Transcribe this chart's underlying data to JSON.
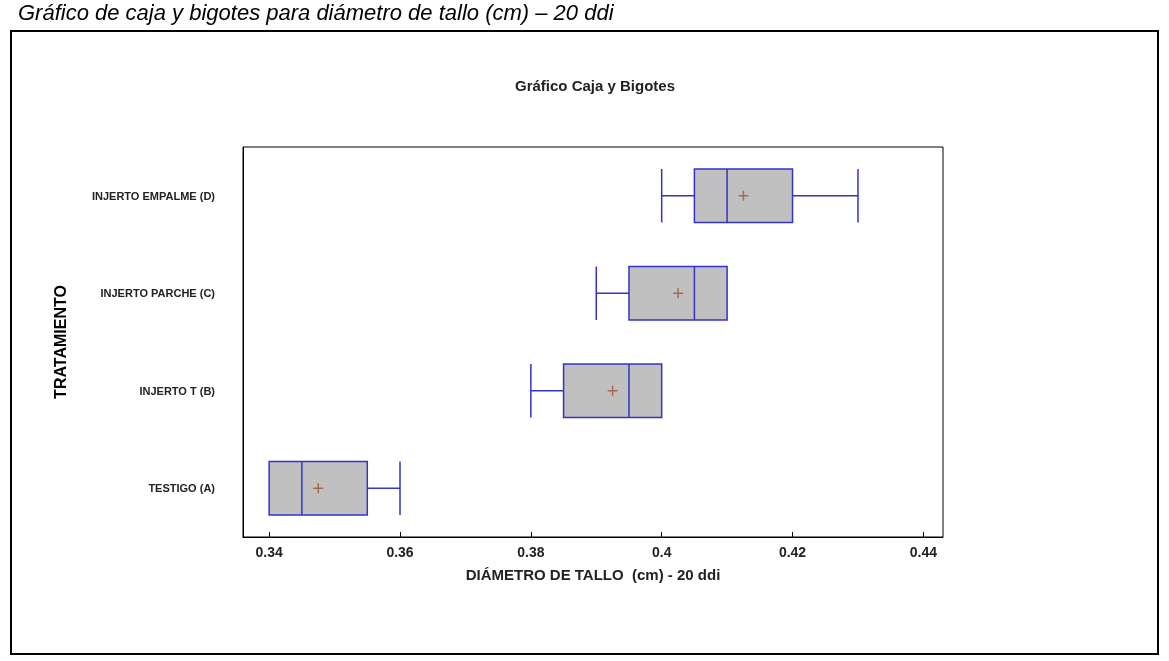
{
  "chart_data": {
    "type": "box",
    "orientation": "horizontal",
    "title": "Gráfico Caja y Bigotes",
    "annotations": [
      "Gráfico de caja y bigotes para diámetro de tallo (cm) – 20 ddi"
    ],
    "xlabel": "DIÁMETRO DE TALLO  (cm) - 20 ddi",
    "ylabel": "TRATAMIENTO",
    "categories": [
      "INJERTO EMPALME (D)",
      "INJERTO PARCHE (C)",
      "INJERTO T (B)",
      "TESTIGO (A)"
    ],
    "color": "#3333cc",
    "boxes": [
      {
        "low": 0.4,
        "q1": 0.405,
        "median": 0.41,
        "q3": 0.42,
        "high": 0.43,
        "mean": 0.4125
      },
      {
        "low": 0.39,
        "q1": 0.395,
        "median": 0.405,
        "q3": 0.41,
        "high": 0.41,
        "mean": 0.4025
      },
      {
        "low": 0.38,
        "q1": 0.385,
        "median": 0.395,
        "q3": 0.4,
        "high": 0.4,
        "mean": 0.3925
      },
      {
        "low": 0.34,
        "q1": 0.34,
        "median": 0.345,
        "q3": 0.355,
        "high": 0.36,
        "mean": 0.3475
      }
    ],
    "xlim": [
      0.336,
      0.443
    ],
    "xticks": [
      0.34,
      0.36,
      0.38,
      0.4,
      0.42,
      0.44
    ],
    "grid": false
  }
}
